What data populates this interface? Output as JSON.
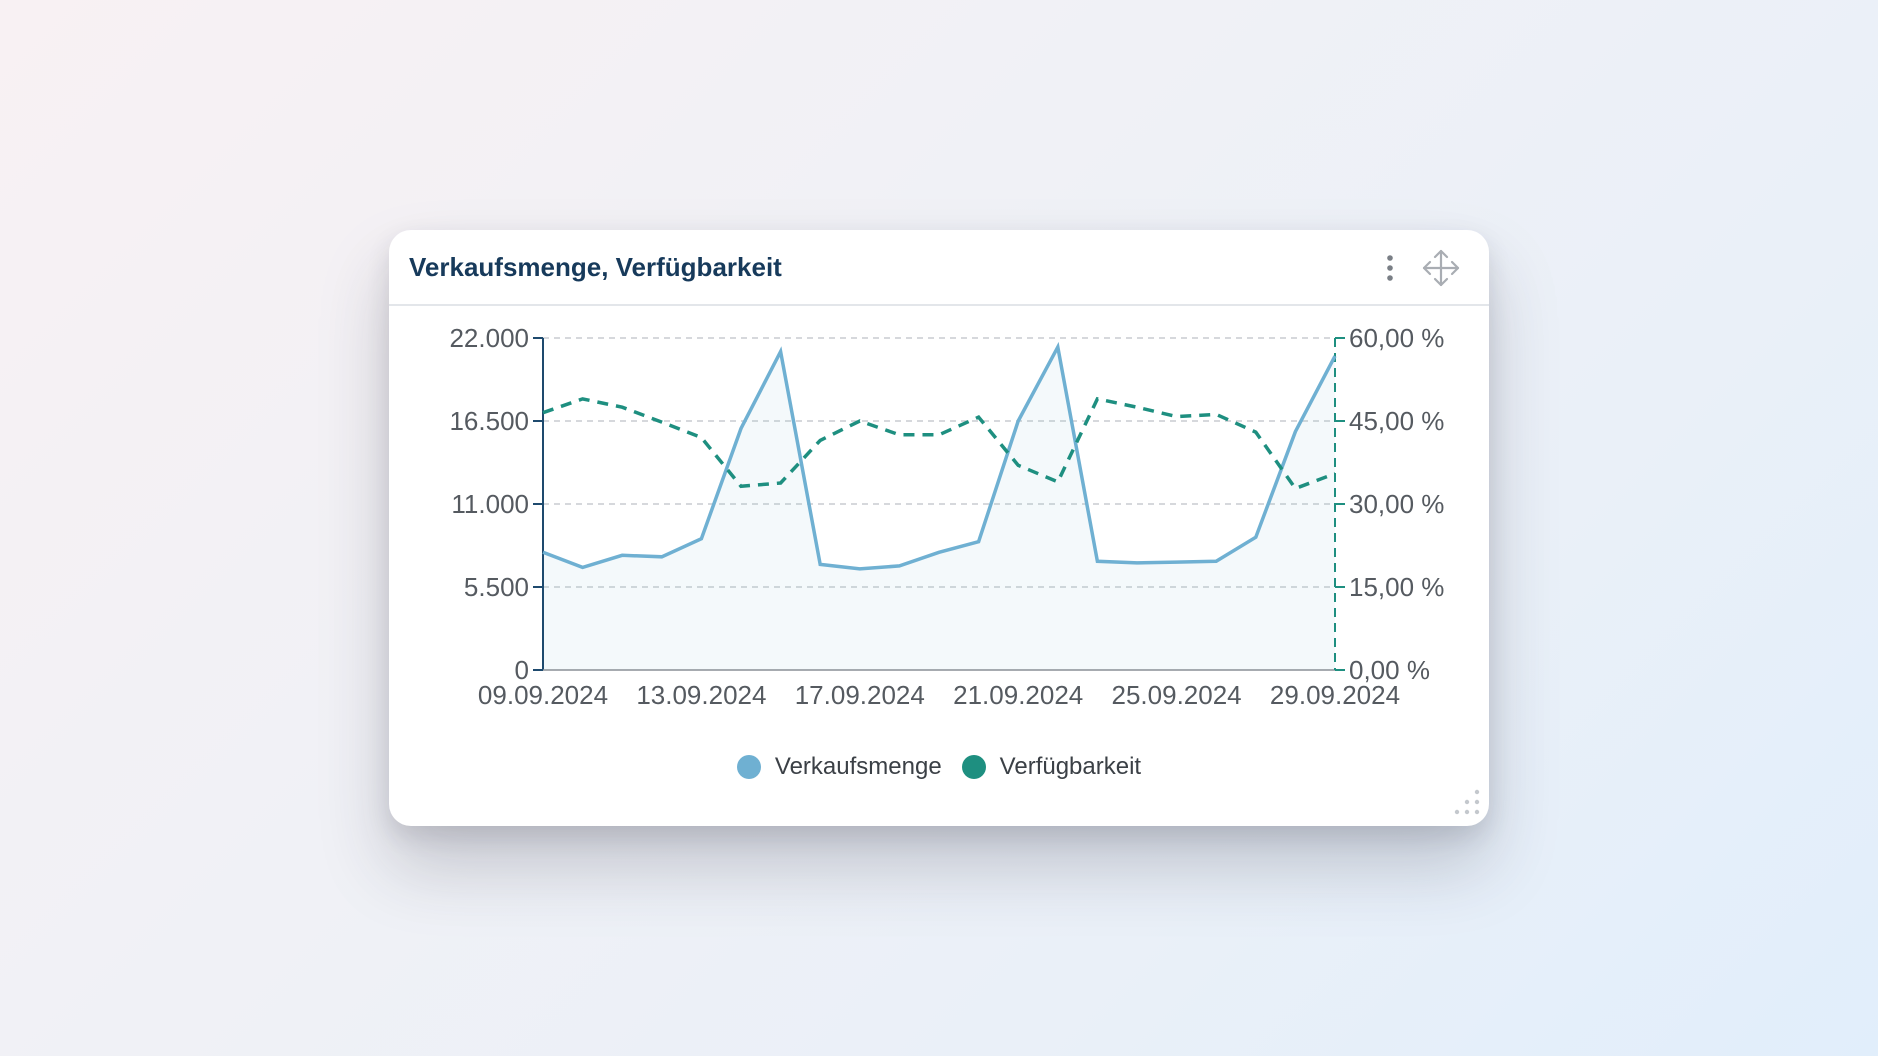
{
  "card": {
    "title": "Verkaufsmenge, Verfügbarkeit",
    "menu_icon": "more-vertical-icon",
    "move_icon": "move-arrows-icon",
    "resize_icon": "resize-grip-icon"
  },
  "colors": {
    "title": "#173a5b",
    "verkaufsmenge": "#6fb0d2",
    "verfuegbarkeit": "#1e8f80",
    "grid": "#c9ccd1",
    "axis_left": "#1e4a6e"
  },
  "chart_data": {
    "type": "line",
    "title": "Verkaufsmenge, Verfügbarkeit",
    "xlabel": "",
    "ylabel": "",
    "x": [
      "09.09.2024",
      "10.09.2024",
      "11.09.2024",
      "12.09.2024",
      "13.09.2024",
      "14.09.2024",
      "15.09.2024",
      "16.09.2024",
      "17.09.2024",
      "18.09.2024",
      "19.09.2024",
      "20.09.2024",
      "21.09.2024",
      "22.09.2024",
      "23.09.2024",
      "24.09.2024",
      "25.09.2024",
      "26.09.2024",
      "27.09.2024",
      "28.09.2024",
      "29.09.2024"
    ],
    "x_tick_labels": [
      "09.09.2024",
      "13.09.2024",
      "17.09.2024",
      "21.09.2024",
      "25.09.2024",
      "29.09.2024"
    ],
    "x_tick_index": [
      0,
      4,
      8,
      12,
      16,
      20
    ],
    "y_left": {
      "ylim": [
        0,
        22000
      ],
      "ticks": [
        0,
        5500,
        11000,
        16500,
        22000
      ],
      "tick_labels": [
        "0",
        "5.500",
        "11.000",
        "16.500",
        "22.000"
      ]
    },
    "y_right": {
      "ylim": [
        0,
        60
      ],
      "ticks": [
        0,
        15,
        30,
        45,
        60
      ],
      "tick_labels": [
        "0,00 %",
        "15,00 %",
        "30,00 %",
        "45,00 %",
        "60,00 %"
      ]
    },
    "grid": true,
    "legend_position": "bottom-center",
    "series": [
      {
        "name": "Verkaufsmenge",
        "axis": "left",
        "style": "solid-area",
        "values": [
          7800,
          6800,
          7600,
          7500,
          8700,
          16000,
          21100,
          7000,
          6700,
          6900,
          7800,
          8500,
          16500,
          21400,
          7200,
          7100,
          7150,
          7200,
          8800,
          15800,
          20800
        ]
      },
      {
        "name": "Verfügbarkeit",
        "axis": "right",
        "style": "dashed",
        "values": [
          46.5,
          49.0,
          47.5,
          44.8,
          42.0,
          33.2,
          33.8,
          41.5,
          45.0,
          42.5,
          42.5,
          45.7,
          37.0,
          34.0,
          49.0,
          47.5,
          45.8,
          46.2,
          43.0,
          32.8,
          35.5
        ]
      }
    ]
  }
}
